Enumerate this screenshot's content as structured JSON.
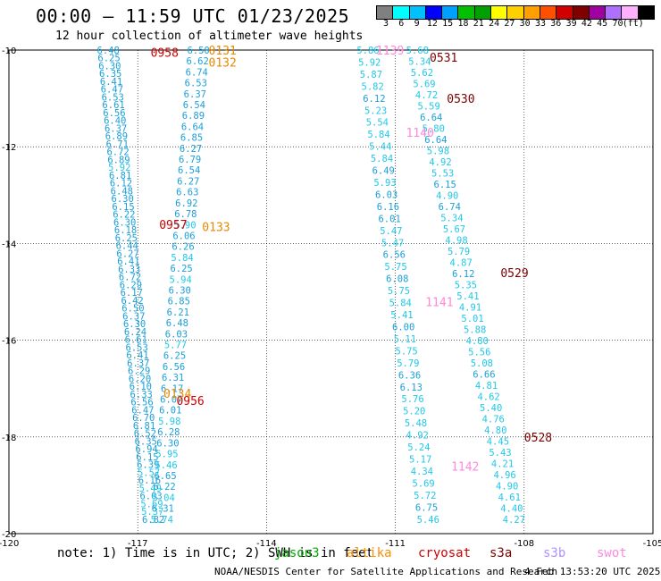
{
  "title": "00:00 – 11:59 UTC 01/23/2025",
  "subtitle": "12 hour collection of altimeter wave heights",
  "scale": {
    "colors": [
      "#808080",
      "#00ffff",
      "#00c0ff",
      "#0000ff",
      "#00a0ff",
      "#00c000",
      "#00a000",
      "#ffff00",
      "#ffd000",
      "#ffa000",
      "#ff5000",
      "#d00000",
      "#800000",
      "#a000a0",
      "#b070ff",
      "#ffb0ff",
      "#000000"
    ],
    "labels": [
      "3",
      "6",
      "9",
      "12",
      "15",
      "18",
      "21",
      "24",
      "27",
      "30",
      "33",
      "36",
      "39",
      "42",
      "45",
      "70",
      "(ft)"
    ]
  },
  "axes": {
    "x_ticks": [
      "-120",
      "-117",
      "-114",
      "-111",
      "-108",
      "-105"
    ],
    "y_ticks": [
      "-10",
      "-12",
      "-14",
      "-16",
      "-18",
      "-20"
    ],
    "xlim": [
      -120,
      -105
    ],
    "ylim": [
      -20,
      -10
    ]
  },
  "passes": [
    {
      "time": "0958",
      "color": "#cc0000",
      "lon": -116.7,
      "lat": -10.05
    },
    {
      "time": "0957",
      "color": "#cc0000",
      "lon": -116.5,
      "lat": -13.6
    },
    {
      "time": "0956",
      "color": "#cc0000",
      "lon": -116.1,
      "lat": -17.25
    },
    {
      "time": "0131",
      "color": "#e88a00",
      "lon": -115.35,
      "lat": -10.0
    },
    {
      "time": "0132",
      "color": "#e88a00",
      "lon": -115.35,
      "lat": -10.25
    },
    {
      "time": "0133",
      "color": "#e88a00",
      "lon": -115.5,
      "lat": -13.65
    },
    {
      "time": "0134",
      "color": "#e88a00",
      "lon": -116.4,
      "lat": -17.1
    },
    {
      "time": "1139",
      "color": "#ff88dd",
      "lon": -111.45,
      "lat": -10.0
    },
    {
      "time": "1140",
      "color": "#ff88dd",
      "lon": -110.75,
      "lat": -11.7
    },
    {
      "time": "1141",
      "color": "#ff88dd",
      "lon": -110.3,
      "lat": -15.2
    },
    {
      "time": "1142",
      "color": "#ff88dd",
      "lon": -109.7,
      "lat": -18.6
    },
    {
      "time": "0531",
      "color": "#7a0000",
      "lon": -110.2,
      "lat": -10.15
    },
    {
      "time": "0530",
      "color": "#7a0000",
      "lon": -109.8,
      "lat": -11.0
    },
    {
      "time": "0529",
      "color": "#7a0000",
      "lon": -108.55,
      "lat": -14.6
    },
    {
      "time": "0528",
      "color": "#7a0000",
      "lon": -108.0,
      "lat": -18.0
    }
  ],
  "tracks": [
    {
      "name": "jason3-left",
      "lon0": -117.95,
      "lon1": -116.9,
      "values": [
        "6.48",
        "6.25",
        "6.30",
        "6.35",
        "6.41",
        "6.47",
        "6.53",
        "6.61",
        "6.56",
        "6.40",
        "6.37",
        "6.89",
        "6.71",
        "6.72",
        "6.89",
        "5.92",
        "6.81",
        "6.12",
        "6.48",
        "6.30",
        "6.15",
        "6.22",
        "6.30",
        "6.18",
        "6.25",
        "6.44",
        "6.27",
        "6.41",
        "6.33",
        "6.72",
        "6.29",
        "6.17",
        "6.42",
        "6.50",
        "6.37",
        "6.30",
        "6.24",
        "6.61",
        "6.53",
        "6.41",
        "6.37",
        "6.29",
        "6.20",
        "6.10",
        "6.33",
        "6.56",
        "6.47",
        "6.70",
        "6.81",
        "6.52",
        "6.35",
        "6.94",
        "6.15",
        "6.39",
        "5.57",
        "6.16",
        "5.49",
        "6.03",
        "5.69",
        "5.37",
        "6.82"
      ]
    },
    {
      "name": "altika-left",
      "lon0": -115.85,
      "lon1": -116.7,
      "values": [
        "6.50",
        "6.62",
        "6.74",
        "6.53",
        "6.37",
        "6.54",
        "6.89",
        "6.64",
        "6.85",
        "6.27",
        "6.79",
        "6.54",
        "6.27",
        "6.63",
        "6.92",
        "6.78",
        "5.90",
        "6.06",
        "6.26",
        "5.84",
        "6.25",
        "5.94",
        "6.30",
        "6.85",
        "6.21",
        "6.48",
        "6.03",
        "5.77",
        "6.25",
        "6.56",
        "6.31",
        "6.17",
        "6.07",
        "6.01",
        "5.98",
        "6.28",
        "6.30",
        "5.95",
        "5.46",
        "6.65",
        "6.22",
        "5.04",
        "6.31",
        "5.74"
      ]
    },
    {
      "name": "cryosat",
      "lon0": -111.9,
      "lon1": -110.5,
      "values": [
        "5.86",
        "5.92",
        "5.87",
        "5.82",
        "6.12",
        "5.23",
        "5.54",
        "5.84",
        "5.44",
        "5.84",
        "6.49",
        "5.93",
        "6.03",
        "6.16",
        "6.01",
        "5.47",
        "5.47",
        "6.56",
        "5.75",
        "6.08",
        "5.75",
        "5.84",
        "5.41",
        "6.00",
        "5.11",
        "5.75",
        "5.79",
        "6.36",
        "6.13",
        "5.76",
        "5.20",
        "5.48",
        "4.92",
        "5.24",
        "5.17",
        "4.34",
        "5.69",
        "5.72",
        "6.75",
        "5.46"
      ]
    },
    {
      "name": "s3a",
      "lon0": -110.75,
      "lon1": -108.5,
      "values": [
        "5.68",
        "5.34",
        "5.62",
        "5.69",
        "4.72",
        "5.59",
        "6.64",
        "5.80",
        "6.64",
        "5.98",
        "4.92",
        "5.53",
        "6.15",
        "4.90",
        "6.74",
        "5.34",
        "5.67",
        "4.98",
        "5.79",
        "4.87",
        "6.12",
        "5.35",
        "5.41",
        "4.91",
        "5.01",
        "5.88",
        "4.80",
        "5.56",
        "5.08",
        "6.66",
        "4.81",
        "4.62",
        "5.40",
        "4.76",
        "4.80",
        "4.45",
        "5.43",
        "4.21",
        "4.96",
        "4.90",
        "4.61",
        "4.40",
        "4.27"
      ]
    }
  ],
  "legend": {
    "note": "note:  1) Time is in UTC;  2) SWH is in feet",
    "satellites": [
      {
        "name": "jason3",
        "color": "#00aa00"
      },
      {
        "name": "altika",
        "color": "#ff8c00"
      },
      {
        "name": "cryosat",
        "color": "#cc0000"
      },
      {
        "name": "s3a",
        "color": "#7a0000"
      },
      {
        "name": "s3b",
        "color": "#b090ff"
      },
      {
        "name": "swot",
        "color": "#ff88dd"
      }
    ]
  },
  "credit": "NOAA/NESDIS Center for Satellite Applications and Research",
  "stamp": "4 Feb 13:53:20 UTC 2025"
}
